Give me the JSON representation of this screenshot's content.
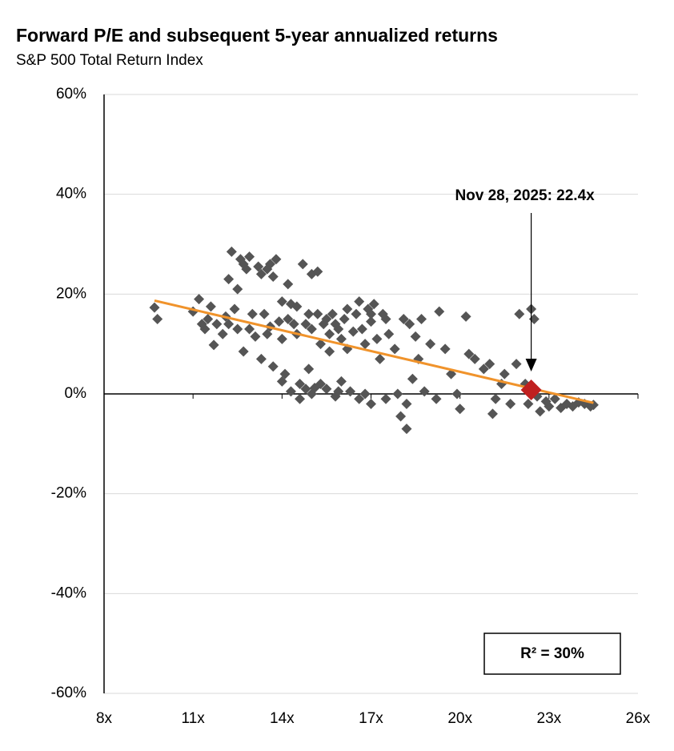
{
  "chart_data": {
    "type": "scatter",
    "title": "Forward P/E and subsequent 5-year annualized returns",
    "subtitle": "S&P 500 Total Return Index",
    "xlim": [
      8,
      26
    ],
    "xticks": [
      {
        "value": 8,
        "label": "8x"
      },
      {
        "value": 11,
        "label": "11x"
      },
      {
        "value": 14,
        "label": "14x"
      },
      {
        "value": 17,
        "label": "17x"
      },
      {
        "value": 20,
        "label": "20x"
      },
      {
        "value": 23,
        "label": "23x"
      },
      {
        "value": 26,
        "label": "26x"
      }
    ],
    "ylim": [
      -60,
      60
    ],
    "yticks": [
      {
        "value": -60,
        "label": "-60%"
      },
      {
        "value": -40,
        "label": "-40%"
      },
      {
        "value": -20,
        "label": "-20%"
      },
      {
        "value": 0,
        "label": "0%"
      },
      {
        "value": 20,
        "label": "20%"
      },
      {
        "value": 40,
        "label": "40%"
      },
      {
        "value": 60,
        "label": "60%"
      }
    ],
    "grid": true,
    "series": [
      {
        "color": "#555555",
        "x": [
          9.7,
          9.8,
          11,
          11.2,
          11.3,
          11.5,
          11.6,
          11.7,
          11.8,
          12,
          12.1,
          12.2,
          12.3,
          12.4,
          12.5,
          12.5,
          12.6,
          12.7,
          12.8,
          12.9,
          12.7,
          12.9,
          13,
          13.1,
          13.2,
          13.3,
          13.3,
          13.4,
          13.5,
          13.5,
          13.6,
          13.7,
          13.7,
          13.8,
          13.9,
          14,
          14,
          14,
          14.1,
          14.2,
          14.2,
          14.3,
          14.3,
          14.5,
          14.5,
          14.6,
          14.7,
          14.8,
          14.8,
          14.9,
          15,
          15,
          15,
          15.2,
          15.2,
          15.3,
          15.3,
          15.4,
          15.5,
          15.6,
          15.6,
          15.7,
          15.8,
          15.9,
          16,
          16,
          16.1,
          16.2,
          16.3,
          16.4,
          16.5,
          16.6,
          16.7,
          16.8,
          16.8,
          16.9,
          17,
          17,
          17.1,
          17.2,
          17.3,
          17.4,
          17.5,
          17.5,
          17.6,
          17.8,
          17.9,
          18,
          18.1,
          18.2,
          18.2,
          18.3,
          18.4,
          18.5,
          18.6,
          18.7,
          18.8,
          19,
          19.2,
          19.3,
          19.5,
          19.7,
          19.9,
          20,
          20.2,
          20.3,
          20.5,
          20.8,
          21,
          21.1,
          21.2,
          21.4,
          21.5,
          21.7,
          21.9,
          22,
          22.2,
          22.3,
          22.4,
          22.5,
          22.6,
          22.7,
          22.9,
          23,
          23.2,
          23.4,
          23.6,
          23.8,
          24,
          24.2,
          24.4,
          24.5,
          15.5,
          15.8,
          16.2,
          16.6,
          17,
          14.4,
          14.9,
          15.1,
          15.9,
          14.6,
          13.6,
          12.2,
          11.4
        ],
        "values": [
          17.3,
          15,
          16.5,
          19,
          14,
          15,
          17.5,
          9.8,
          14,
          12,
          15.5,
          23,
          28.5,
          17,
          13,
          21,
          27,
          26,
          25,
          27.5,
          8.5,
          13,
          16,
          11.5,
          25.5,
          24,
          7,
          16,
          12,
          25,
          26,
          23.5,
          5.5,
          27,
          14.5,
          11,
          18.5,
          2.5,
          4,
          15,
          22,
          18,
          0.5,
          17.5,
          12,
          -1,
          26,
          14,
          1,
          5,
          13,
          24,
          0,
          16,
          24.5,
          10,
          2,
          14,
          1,
          12,
          8.5,
          16,
          -0.5,
          13,
          11,
          2.5,
          15,
          9,
          0.5,
          12.5,
          16,
          -1,
          13,
          10,
          0,
          17,
          14.5,
          -2,
          18,
          11,
          7,
          16,
          15,
          -1,
          12,
          9,
          0,
          -4.5,
          15,
          -2,
          -7,
          14,
          3,
          11.5,
          7,
          15,
          0.5,
          10,
          -1,
          16.5,
          9,
          4,
          0,
          -3,
          15.5,
          8,
          7,
          5,
          6,
          -4,
          -1,
          2,
          4,
          -2,
          6,
          16,
          2,
          -2,
          17,
          15,
          -0.5,
          -3.5,
          -1.5,
          -2.5,
          -1,
          -2.8,
          -2,
          -2.5,
          -1.7,
          -2,
          -2.5,
          -2.2,
          15,
          14,
          17,
          18.5,
          16,
          14,
          16,
          1.2,
          0.5,
          2,
          13.5,
          14,
          13
        ]
      },
      {
        "color": "#c0201f",
        "x": [
          22.4
        ],
        "values": [
          0.8
        ]
      }
    ],
    "trendline": {
      "color": "#f0932b",
      "x": [
        9.7,
        24.5
      ],
      "values": [
        18.7,
        -1.8
      ]
    },
    "annotations": [
      {
        "text": "Nov 28, 2025: 22.4x"
      },
      {
        "text": "R²  = 30%"
      }
    ]
  }
}
